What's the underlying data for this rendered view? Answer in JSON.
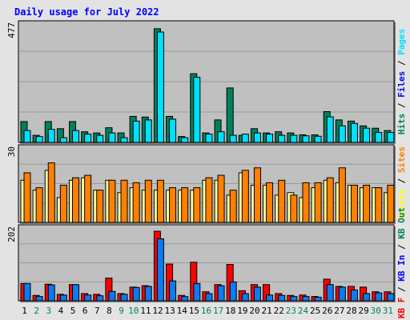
{
  "chart_data": {
    "type": "bar",
    "title": "Daily usage for July 2022",
    "categories": [
      "1",
      "2",
      "3",
      "4",
      "5",
      "6",
      "7",
      "8",
      "9",
      "10",
      "11",
      "12",
      "13",
      "14",
      "15",
      "16",
      "17",
      "18",
      "19",
      "20",
      "21",
      "22",
      "23",
      "24",
      "25",
      "26",
      "27",
      "28",
      "29",
      "30",
      "31"
    ],
    "weekend_days": [
      "2",
      "3",
      "9",
      "10",
      "16",
      "17",
      "23",
      "24",
      "30",
      "31"
    ],
    "grid": true,
    "panels": [
      {
        "name": "hits-files-pages",
        "ymax_label": "477",
        "ymax": 500,
        "right_legend": [
          {
            "text": "Hits",
            "color": "#00805c"
          },
          {
            "text": " / ",
            "color": "#000000"
          },
          {
            "text": "Files",
            "color": "#0000ff"
          },
          {
            "text": " / ",
            "color": "#000000"
          },
          {
            "text": "Pages",
            "color": "#00e0ff"
          }
        ],
        "series": [
          {
            "name": "Hits",
            "color": "#00805c",
            "values": [
              88,
              30,
              88,
              58,
              88,
              45,
              40,
              62,
              40,
              110,
              107,
              480,
              110,
              25,
              290,
              40,
              95,
              230,
              30,
              58,
              40,
              45,
              40,
              32,
              32,
              130,
              95,
              90,
              70,
              60,
              50
            ]
          },
          {
            "name": "Files",
            "color": "#00e0ff",
            "values": [
              50,
              25,
              55,
              20,
              50,
              35,
              30,
              40,
              20,
              90,
              95,
              466,
              98,
              20,
              275,
              35,
              45,
              30,
              35,
              40,
              35,
              30,
              30,
              28,
              26,
              108,
              70,
              80,
              60,
              42,
              42
            ]
          }
        ]
      },
      {
        "name": "visits-sites",
        "ymax_label": "30",
        "ymax": 30,
        "right_legend": [
          {
            "text": "Visits",
            "color": "#ffff00"
          },
          {
            "text": " / ",
            "color": "#000000"
          },
          {
            "text": "Sites",
            "color": "#ff8000"
          }
        ],
        "series": [
          {
            "name": "Visits",
            "color": "#ffff99",
            "values": [
              17,
              13,
              21,
              10,
              17,
              18,
              13,
              17,
              12,
              14,
              13,
              13,
              13,
              13,
              13,
              17,
              17,
              11,
              20,
              15,
              15,
              11,
              12,
              10,
              14,
              17,
              16,
              15,
              14,
              14,
              12
            ]
          },
          {
            "name": "Sites",
            "color": "#ff8000",
            "values": [
              20,
              14,
              24,
              15,
              18,
              19,
              13,
              17,
              17,
              16,
              17,
              17,
              14,
              14,
              14,
              18,
              19,
              13,
              21,
              22,
              16,
              17,
              11,
              16,
              16,
              18,
              22,
              15,
              15,
              14,
              15
            ]
          }
        ]
      },
      {
        "name": "kb",
        "ymax_label": "202",
        "ymax": 202,
        "right_legend": [
          {
            "text": "KB F",
            "color": "#ff0000"
          },
          {
            "text": " / ",
            "color": "#000000"
          },
          {
            "text": "KB In",
            "color": "#0000ff"
          },
          {
            "text": " / ",
            "color": "#000000"
          },
          {
            "text": "KB Out",
            "color": "#00805c"
          }
        ],
        "series": [
          {
            "name": "KB F",
            "color": "#ff0000",
            "values": [
              48,
              15,
              46,
              18,
              45,
              20,
              18,
              63,
              20,
              38,
              42,
              193,
              102,
              15,
              107,
              25,
              45,
              101,
              28,
              45,
              45,
              20,
              15,
              16,
              12,
              60,
              40,
              40,
              38,
              25,
              25
            ]
          },
          {
            "name": "KB In",
            "color": "#0a7bf0",
            "values": [
              48,
              12,
              44,
              16,
              45,
              16,
              14,
              26,
              18,
              37,
              40,
              172,
              55,
              12,
              48,
              20,
              42,
              52,
              20,
              38,
              16,
              15,
              12,
              12,
              10,
              45,
              38,
              30,
              20,
              22,
              20
            ]
          }
        ]
      }
    ]
  }
}
